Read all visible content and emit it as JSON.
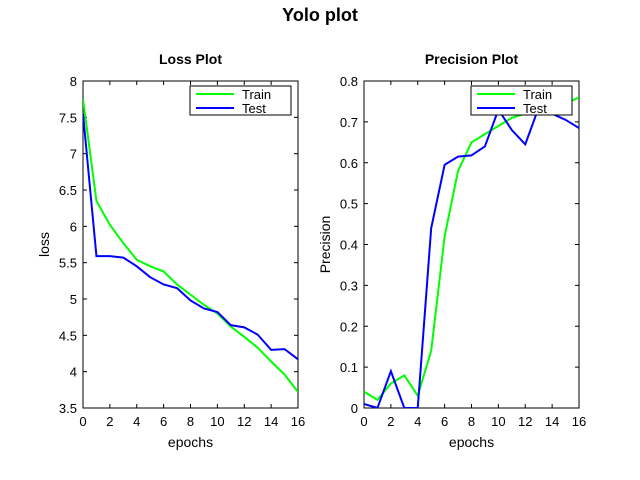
{
  "figure_title": "Yolo plot",
  "chart_data": [
    {
      "type": "line",
      "title": "Loss Plot",
      "xlabel": "epochs",
      "ylabel": "loss",
      "xlim": [
        0,
        16
      ],
      "ylim": [
        3.5,
        8
      ],
      "x_ticks": [
        0,
        2,
        4,
        6,
        8,
        10,
        12,
        14,
        16
      ],
      "y_ticks": [
        3.5,
        4,
        4.5,
        5,
        5.5,
        6,
        6.5,
        7,
        7.5,
        8
      ],
      "x_tick_labels": [
        "0",
        "2",
        "4",
        "6",
        "8",
        "10",
        "12",
        "14",
        "16"
      ],
      "y_tick_labels": [
        "3.5",
        "4",
        "4.5",
        "5",
        "5.5",
        "6",
        "6.5",
        "7",
        "7.5",
        "8"
      ],
      "legend_position": "top-right",
      "x": [
        0,
        1,
        2,
        3,
        4,
        5,
        6,
        7,
        8,
        9,
        10,
        11,
        12,
        13,
        14,
        15,
        16
      ],
      "series": [
        {
          "name": "Train",
          "color": "#00ff00",
          "values": [
            7.75,
            6.35,
            6.02,
            5.77,
            5.54,
            5.45,
            5.38,
            5.2,
            5.06,
            4.92,
            4.8,
            4.62,
            4.48,
            4.33,
            4.14,
            3.96,
            3.72
          ]
        },
        {
          "name": "Test",
          "color": "#0000ff",
          "values": [
            7.55,
            5.59,
            5.59,
            5.57,
            5.45,
            5.3,
            5.2,
            5.15,
            4.98,
            4.87,
            4.82,
            4.64,
            4.61,
            4.51,
            4.3,
            4.31,
            4.17
          ]
        }
      ]
    },
    {
      "type": "line",
      "title": "Precision Plot",
      "xlabel": "epochs",
      "ylabel": "Precision",
      "xlim": [
        0,
        16
      ],
      "ylim": [
        0,
        0.8
      ],
      "x_ticks": [
        0,
        2,
        4,
        6,
        8,
        10,
        12,
        14,
        16
      ],
      "y_ticks": [
        0,
        0.1,
        0.2,
        0.3,
        0.4,
        0.5,
        0.6,
        0.7,
        0.8
      ],
      "x_tick_labels": [
        "0",
        "2",
        "4",
        "6",
        "8",
        "10",
        "12",
        "14",
        "16"
      ],
      "y_tick_labels": [
        "0",
        "0.1",
        "0.2",
        "0.3",
        "0.4",
        "0.5",
        "0.6",
        "0.7",
        "0.8"
      ],
      "legend_position": "top-right",
      "x": [
        0,
        1,
        2,
        3,
        4,
        5,
        6,
        7,
        8,
        9,
        10,
        11,
        12,
        13,
        14,
        15,
        16
      ],
      "series": [
        {
          "name": "Train",
          "color": "#00ff00",
          "values": [
            0.04,
            0.02,
            0.06,
            0.08,
            0.03,
            0.14,
            0.42,
            0.58,
            0.65,
            0.67,
            0.69,
            0.71,
            0.72,
            0.73,
            0.74,
            0.745,
            0.76
          ]
        },
        {
          "name": "Test",
          "color": "#0000ff",
          "values": [
            0.01,
            0.0,
            0.09,
            0.0,
            0.0,
            0.44,
            0.595,
            0.615,
            0.618,
            0.64,
            0.73,
            0.68,
            0.645,
            0.735,
            0.72,
            0.705,
            0.685
          ]
        }
      ]
    }
  ]
}
